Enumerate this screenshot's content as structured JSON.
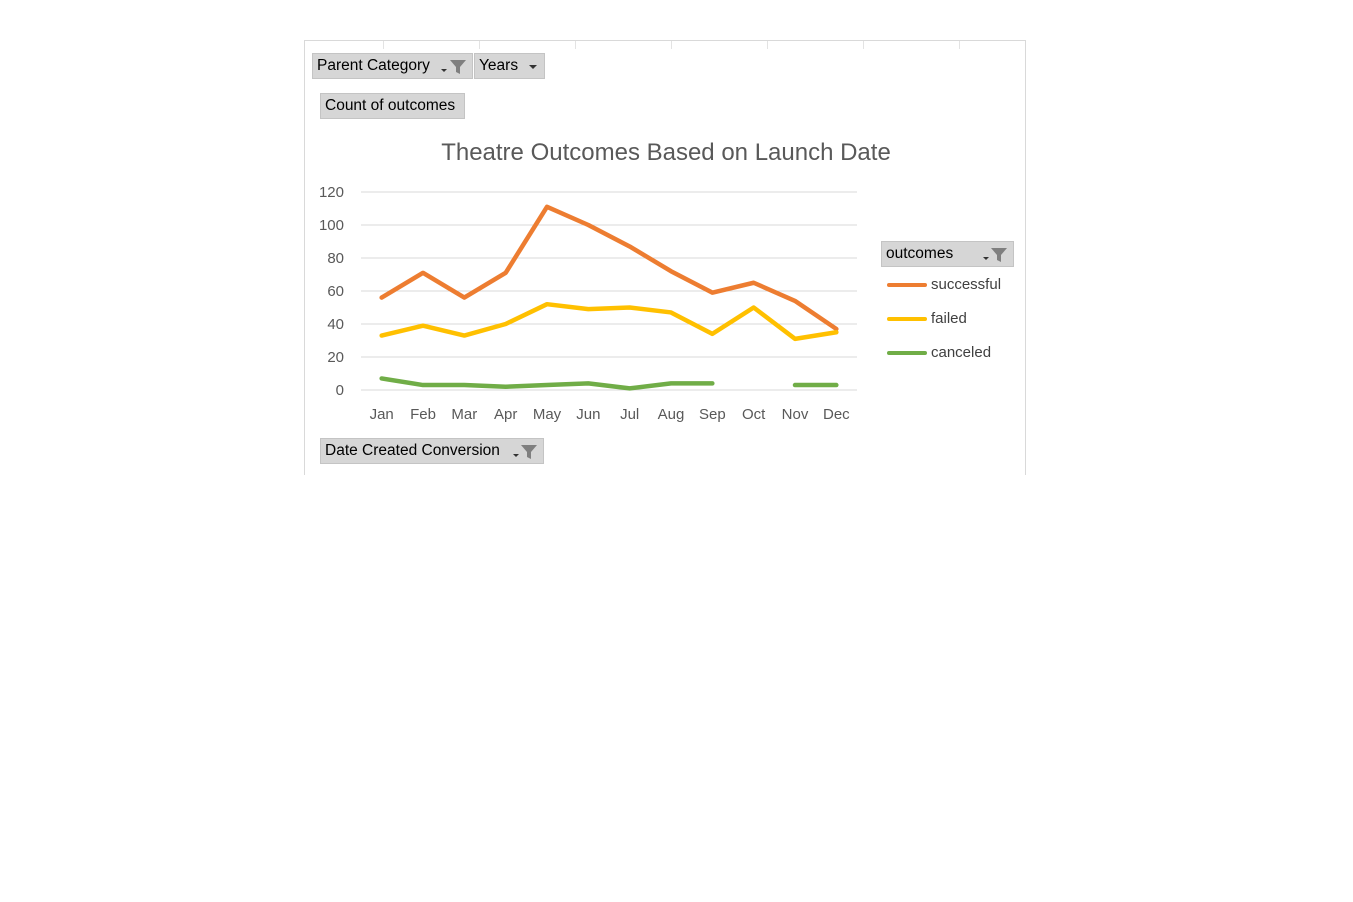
{
  "filters": {
    "parent_category": "Parent Category",
    "years": "Years",
    "values_field": "Count of outcomes",
    "axis_field": "Date Created Conversion",
    "legend_field": "outcomes"
  },
  "colors": {
    "successful": "#ED7D31",
    "failed": "#FFC000",
    "canceled": "#70AD47",
    "gridline": "#D9D9D9",
    "field_button": "#D6D6D6"
  },
  "chart_data": {
    "type": "line",
    "title": "Theatre Outcomes Based on Launch Date",
    "xlabel": "",
    "ylabel": "",
    "categories": [
      "Jan",
      "Feb",
      "Mar",
      "Apr",
      "May",
      "Jun",
      "Jul",
      "Aug",
      "Sep",
      "Oct",
      "Nov",
      "Dec"
    ],
    "ylim": [
      0,
      120
    ],
    "yticks": [
      "0",
      "20",
      "40",
      "60",
      "80",
      "100",
      "120"
    ],
    "grid": true,
    "legend_position": "right",
    "series": [
      {
        "name": "successful",
        "color": "#ED7D31",
        "values": [
          56,
          71,
          56,
          71,
          111,
          100,
          87,
          72,
          59,
          65,
          54,
          37
        ]
      },
      {
        "name": "failed",
        "color": "#FFC000",
        "values": [
          33,
          39,
          33,
          40,
          52,
          49,
          50,
          47,
          34,
          50,
          31,
          35
        ]
      },
      {
        "name": "canceled",
        "color": "#70AD47",
        "values": [
          7,
          3,
          3,
          2,
          3,
          4,
          1,
          4,
          4,
          null,
          3,
          3
        ]
      }
    ]
  }
}
